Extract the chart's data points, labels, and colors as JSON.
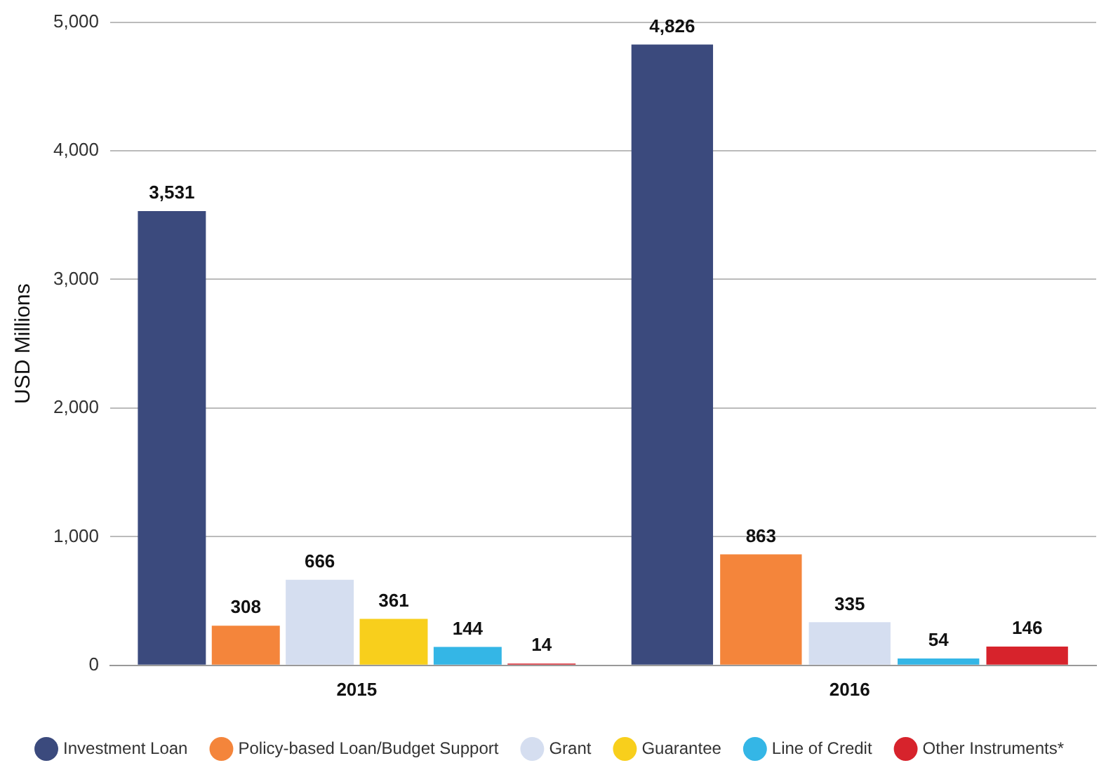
{
  "chart_data": {
    "type": "bar",
    "ylabel": "USD Millions",
    "categories": [
      "2015",
      "2016"
    ],
    "series": [
      {
        "name": "Investment Loan",
        "color": "#3b4a7d",
        "values": [
          3531,
          4826
        ],
        "value_labels": [
          "3,531",
          "4,826"
        ]
      },
      {
        "name": "Policy-based Loan/Budget Support",
        "color": "#f4853b",
        "values": [
          308,
          863
        ],
        "value_labels": [
          "308",
          "863"
        ]
      },
      {
        "name": "Grant",
        "color": "#d5def0",
        "values": [
          666,
          335
        ],
        "value_labels": [
          "666",
          "335"
        ]
      },
      {
        "name": "Guarantee",
        "color": "#f8cf1c",
        "values": [
          361,
          null
        ],
        "value_labels": [
          "361",
          null
        ]
      },
      {
        "name": "Line of Credit",
        "color": "#34b6e6",
        "values": [
          144,
          54
        ],
        "value_labels": [
          "144",
          "54"
        ]
      },
      {
        "name": "Other Instruments*",
        "color": "#d7232c",
        "values": [
          14,
          146
        ],
        "value_labels": [
          "14",
          "146"
        ]
      }
    ],
    "ylim": [
      0,
      5000
    ],
    "yticks": [
      0,
      {
        "value": 1000,
        "label": "1,000"
      },
      {
        "value": 2000,
        "label": "2,000"
      },
      {
        "value": 3000,
        "label": "3,000"
      },
      {
        "value": 4000,
        "label": "4,000"
      },
      {
        "value": 5000,
        "label": "5,000"
      }
    ],
    "grid": "y",
    "legend": "bottom"
  }
}
